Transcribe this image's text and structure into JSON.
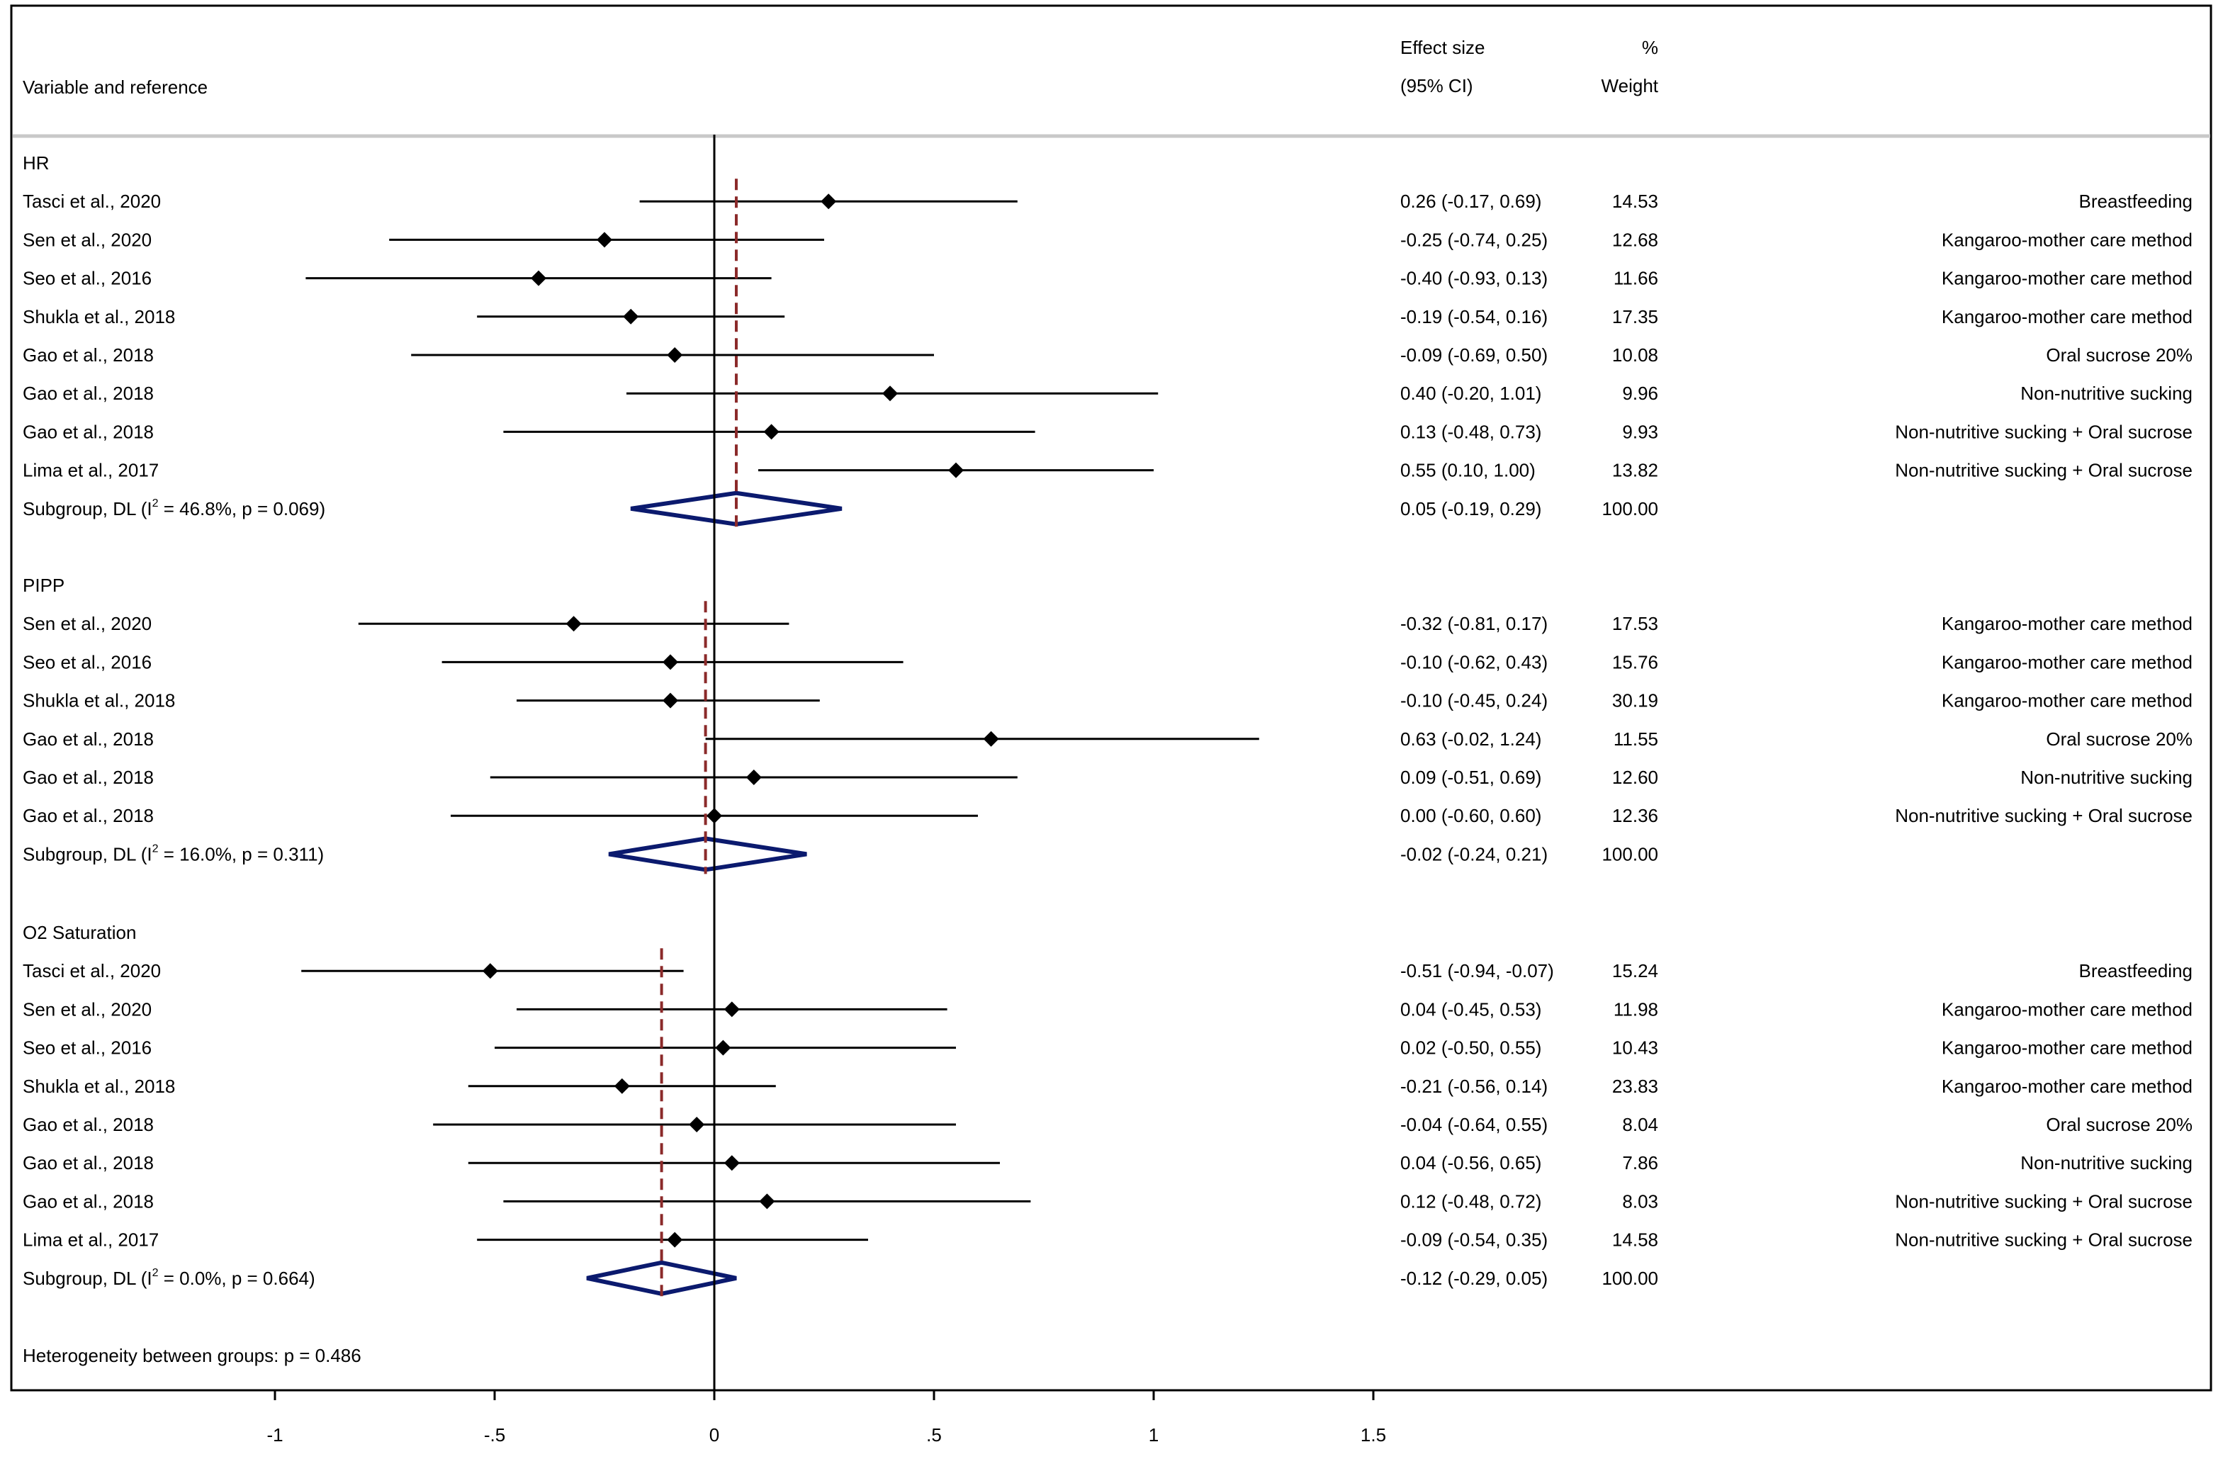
{
  "chart_data": {
    "type": "forest",
    "header": {
      "col_label": "Variable and reference",
      "effect_line1": "Effect size",
      "effect_line2": "(95% CI)",
      "weight_line1": "%",
      "weight_line2": "Weight"
    },
    "xaxis": {
      "range": [
        -1,
        1.5
      ],
      "ticks": [
        -1,
        -0.5,
        0,
        0.5,
        1,
        1.5
      ],
      "tick_labels": [
        "-1",
        "-.5",
        "0",
        ".5",
        "1",
        "1.5"
      ]
    },
    "groups": [
      {
        "name": "HR",
        "subgroup_label": "Subgroup, DL (I",
        "subgroup_stats": " = 46.8%, p = 0.069)",
        "subgroup": {
          "est": 0.05,
          "lo": -0.19,
          "hi": 0.29,
          "ci_text": "0.05 (-0.19, 0.29)",
          "weight": "100.00"
        },
        "studies": [
          {
            "label": "Tasci et al., 2020",
            "est": 0.26,
            "lo": -0.17,
            "hi": 0.69,
            "ci_text": "0.26 (-0.17, 0.69)",
            "weight": "14.53",
            "intervention": "Breastfeeding"
          },
          {
            "label": "Sen et al., 2020",
            "est": -0.25,
            "lo": -0.74,
            "hi": 0.25,
            "ci_text": "-0.25 (-0.74, 0.25)",
            "weight": "12.68",
            "intervention": "Kangaroo-mother care method"
          },
          {
            "label": "Seo et al., 2016",
            "est": -0.4,
            "lo": -0.93,
            "hi": 0.13,
            "ci_text": "-0.40 (-0.93, 0.13)",
            "weight": "11.66",
            "intervention": "Kangaroo-mother care method"
          },
          {
            "label": "Shukla et al., 2018",
            "est": -0.19,
            "lo": -0.54,
            "hi": 0.16,
            "ci_text": "-0.19 (-0.54, 0.16)",
            "weight": "17.35",
            "intervention": "Kangaroo-mother care method"
          },
          {
            "label": "Gao et al., 2018",
            "est": -0.09,
            "lo": -0.69,
            "hi": 0.5,
            "ci_text": "-0.09 (-0.69, 0.50)",
            "weight": "10.08",
            "intervention": "Oral sucrose 20%"
          },
          {
            "label": "Gao et al., 2018",
            "est": 0.4,
            "lo": -0.2,
            "hi": 1.01,
            "ci_text": "0.40 (-0.20, 1.01)",
            "weight": "9.96",
            "intervention": "Non-nutritive sucking"
          },
          {
            "label": "Gao et al., 2018",
            "est": 0.13,
            "lo": -0.48,
            "hi": 0.73,
            "ci_text": "0.13 (-0.48, 0.73)",
            "weight": "9.93",
            "intervention": "Non-nutritive sucking + Oral sucrose"
          },
          {
            "label": "Lima et al., 2017",
            "est": 0.55,
            "lo": 0.1,
            "hi": 1.0,
            "ci_text": "0.55 (0.10, 1.00)",
            "weight": "13.82",
            "intervention": "Non-nutritive sucking + Oral sucrose"
          }
        ]
      },
      {
        "name": "PIPP",
        "subgroup_label": "Subgroup, DL (I",
        "subgroup_stats": " = 16.0%, p = 0.311)",
        "subgroup": {
          "est": -0.02,
          "lo": -0.24,
          "hi": 0.21,
          "ci_text": "-0.02 (-0.24, 0.21)",
          "weight": "100.00"
        },
        "studies": [
          {
            "label": "Sen et al., 2020",
            "est": -0.32,
            "lo": -0.81,
            "hi": 0.17,
            "ci_text": "-0.32 (-0.81, 0.17)",
            "weight": "17.53",
            "intervention": "Kangaroo-mother care method"
          },
          {
            "label": "Seo et al., 2016",
            "est": -0.1,
            "lo": -0.62,
            "hi": 0.43,
            "ci_text": "-0.10 (-0.62, 0.43)",
            "weight": "15.76",
            "intervention": "Kangaroo-mother care method"
          },
          {
            "label": "Shukla et al., 2018",
            "est": -0.1,
            "lo": -0.45,
            "hi": 0.24,
            "ci_text": "-0.10 (-0.45, 0.24)",
            "weight": "30.19",
            "intervention": "Kangaroo-mother care method"
          },
          {
            "label": "Gao et al., 2018",
            "est": 0.63,
            "lo": -0.02,
            "hi": 1.24,
            "ci_text": "0.63 (-0.02, 1.24)",
            "weight": "11.55",
            "intervention": "Oral sucrose 20%"
          },
          {
            "label": "Gao et al., 2018",
            "est": 0.09,
            "lo": -0.51,
            "hi": 0.69,
            "ci_text": "0.09 (-0.51, 0.69)",
            "weight": "12.60",
            "intervention": "Non-nutritive sucking"
          },
          {
            "label": "Gao et al., 2018",
            "est": 0.0,
            "lo": -0.6,
            "hi": 0.6,
            "ci_text": "0.00 (-0.60, 0.60)",
            "weight": "12.36",
            "intervention": "Non-nutritive sucking + Oral sucrose"
          }
        ]
      },
      {
        "name": "O2 Saturation",
        "subgroup_label": "Subgroup, DL (I",
        "subgroup_stats": " = 0.0%, p = 0.664)",
        "subgroup": {
          "est": -0.12,
          "lo": -0.29,
          "hi": 0.05,
          "ci_text": "-0.12 (-0.29, 0.05)",
          "weight": "100.00"
        },
        "studies": [
          {
            "label": "Tasci et al., 2020",
            "est": -0.51,
            "lo": -0.94,
            "hi": -0.07,
            "ci_text": "-0.51 (-0.94, -0.07)",
            "weight": "15.24",
            "intervention": "Breastfeeding"
          },
          {
            "label": "Sen et al., 2020",
            "est": 0.04,
            "lo": -0.45,
            "hi": 0.53,
            "ci_text": "0.04 (-0.45, 0.53)",
            "weight": "11.98",
            "intervention": "Kangaroo-mother care method"
          },
          {
            "label": "Seo et al., 2016",
            "est": 0.02,
            "lo": -0.5,
            "hi": 0.55,
            "ci_text": "0.02 (-0.50, 0.55)",
            "weight": "10.43",
            "intervention": "Kangaroo-mother care method"
          },
          {
            "label": "Shukla et al., 2018",
            "est": -0.21,
            "lo": -0.56,
            "hi": 0.14,
            "ci_text": "-0.21 (-0.56, 0.14)",
            "weight": "23.83",
            "intervention": "Kangaroo-mother care method"
          },
          {
            "label": "Gao et al., 2018",
            "est": -0.04,
            "lo": -0.64,
            "hi": 0.55,
            "ci_text": "-0.04 (-0.64, 0.55)",
            "weight": "8.04",
            "intervention": "Oral sucrose 20%"
          },
          {
            "label": "Gao et al., 2018",
            "est": 0.04,
            "lo": -0.56,
            "hi": 0.65,
            "ci_text": "0.04 (-0.56, 0.65)",
            "weight": "7.86",
            "intervention": "Non-nutritive sucking"
          },
          {
            "label": "Gao et al., 2018",
            "est": 0.12,
            "lo": -0.48,
            "hi": 0.72,
            "ci_text": "0.12 (-0.48, 0.72)",
            "weight": "8.03",
            "intervention": "Non-nutritive sucking + Oral sucrose"
          },
          {
            "label": "Lima et al., 2017",
            "est": -0.09,
            "lo": -0.54,
            "hi": 0.35,
            "ci_text": "-0.09 (-0.54, 0.35)",
            "weight": "14.58",
            "intervention": "Non-nutritive sucking + Oral sucrose"
          }
        ]
      }
    ],
    "i2_superscript": "2",
    "heterogeneity": "Heterogeneity between groups: p = 0.486",
    "colors": {
      "diamond": "#0b1a6e",
      "subgroup_line": "#8b2a2a",
      "marker": "#000000",
      "header_rule": "#c8c8c8"
    }
  }
}
